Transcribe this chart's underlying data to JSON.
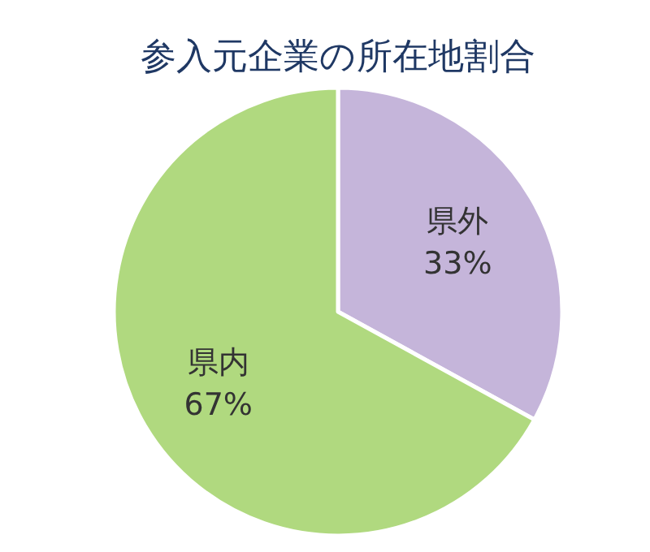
{
  "chart_data": {
    "type": "pie",
    "title": "参入元企業の所在地割合",
    "categories": [
      "県外",
      "県内"
    ],
    "values": [
      33,
      67
    ],
    "colors": [
      "#c5b5da",
      "#b0d97f"
    ],
    "value_labels": [
      "33%",
      "67%"
    ]
  }
}
